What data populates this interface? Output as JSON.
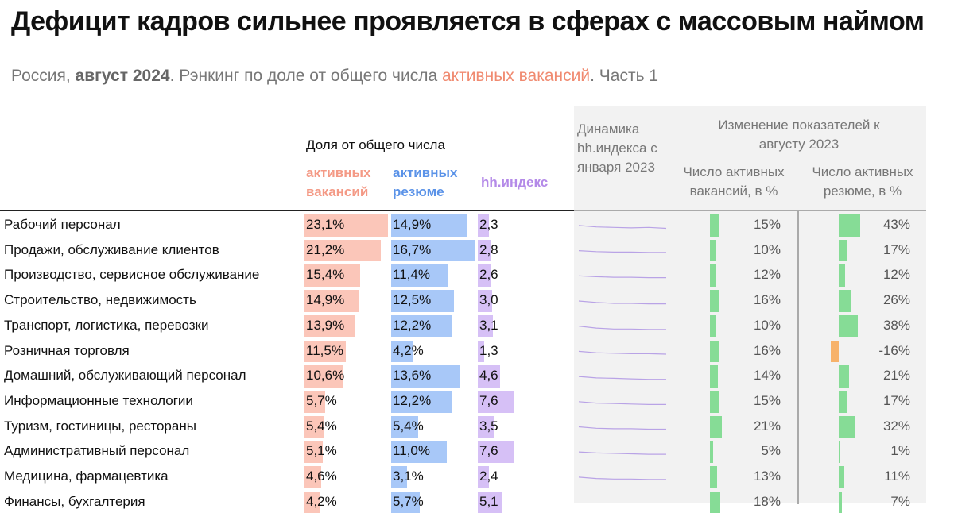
{
  "header": {
    "title": "Дефицит кадров сильнее проявляется в сферах с массовым наймом",
    "subtitle": [
      "Россия, ",
      "август 2024",
      ". Рэнкинг по доле от общего числа ",
      "активных вакансий",
      ". Часть 1"
    ]
  },
  "columns": {
    "share_group": "Доля от общего числа",
    "vacancies": "активных вакансий",
    "resumes": "активных резюме",
    "hh": "hh.индекс",
    "trend": "Динамика hh.индекса с января 2023",
    "change_group": "Изменение показателей к августу 2023",
    "vac_change": "Число активных вакансий, в %",
    "res_change": "Число активных резюме, в %"
  },
  "table": {
    "rows": [
      {
        "name": "Рабочий персонал",
        "vacancies": {
          "value": 23.1,
          "label": "23,1%"
        },
        "resumes": {
          "value": 14.9,
          "label": "14,9%"
        },
        "hh": {
          "value": 2.3,
          "label": "2,3"
        },
        "trend": [
          2.9,
          2.6,
          2.5,
          2.4,
          2.5,
          2.3
        ],
        "vac_change": {
          "value": 15,
          "label": "15%"
        },
        "res_change": {
          "value": 43,
          "label": "43%"
        }
      },
      {
        "name": "Продажи, обслуживание клиентов",
        "vacancies": {
          "value": 21.2,
          "label": "21,2%"
        },
        "resumes": {
          "value": 16.7,
          "label": "16,7%"
        },
        "hh": {
          "value": 2.8,
          "label": "2,8"
        },
        "trend": [
          3.2,
          3.0,
          2.9,
          2.9,
          2.8,
          2.8
        ],
        "vac_change": {
          "value": 10,
          "label": "10%"
        },
        "res_change": {
          "value": 17,
          "label": "17%"
        }
      },
      {
        "name": "Производство, сервисное обслуживание",
        "vacancies": {
          "value": 15.4,
          "label": "15,4%"
        },
        "resumes": {
          "value": 11.4,
          "label": "11,4%"
        },
        "hh": {
          "value": 2.6,
          "label": "2,6"
        },
        "trend": [
          3.0,
          2.8,
          2.7,
          2.7,
          2.6,
          2.6
        ],
        "vac_change": {
          "value": 12,
          "label": "12%"
        },
        "res_change": {
          "value": 12,
          "label": "12%"
        }
      },
      {
        "name": "Строительство, недвижимость",
        "vacancies": {
          "value": 14.9,
          "label": "14,9%"
        },
        "resumes": {
          "value": 12.5,
          "label": "12,5%"
        },
        "hh": {
          "value": 3.0,
          "label": "3,0"
        },
        "trend": [
          3.6,
          3.3,
          3.1,
          3.1,
          3.0,
          3.0
        ],
        "vac_change": {
          "value": 16,
          "label": "16%"
        },
        "res_change": {
          "value": 26,
          "label": "26%"
        }
      },
      {
        "name": "Транспорт, логистика, перевозки",
        "vacancies": {
          "value": 13.9,
          "label": "13,9%"
        },
        "resumes": {
          "value": 12.2,
          "label": "12,2%"
        },
        "hh": {
          "value": 3.1,
          "label": "3,1"
        },
        "trend": [
          3.8,
          3.4,
          3.2,
          3.2,
          3.1,
          3.1
        ],
        "vac_change": {
          "value": 10,
          "label": "10%"
        },
        "res_change": {
          "value": 38,
          "label": "38%"
        }
      },
      {
        "name": "Розничная торговля",
        "vacancies": {
          "value": 11.5,
          "label": "11,5%"
        },
        "resumes": {
          "value": 4.2,
          "label": "4,2%"
        },
        "hh": {
          "value": 1.3,
          "label": "1,3"
        },
        "trend": [
          1.9,
          1.6,
          1.5,
          1.4,
          1.4,
          1.3
        ],
        "vac_change": {
          "value": 16,
          "label": "16%"
        },
        "res_change": {
          "value": -16,
          "label": "-16%"
        }
      },
      {
        "name": "Домашний, обслуживающий персонал",
        "vacancies": {
          "value": 10.6,
          "label": "10,6%"
        },
        "resumes": {
          "value": 13.6,
          "label": "13,6%"
        },
        "hh": {
          "value": 4.6,
          "label": "4,6"
        },
        "trend": [
          5.2,
          4.9,
          4.8,
          4.7,
          4.6,
          4.6
        ],
        "vac_change": {
          "value": 14,
          "label": "14%"
        },
        "res_change": {
          "value": 21,
          "label": "21%"
        }
      },
      {
        "name": "Информационные технологии",
        "vacancies": {
          "value": 5.7,
          "label": "5,7%"
        },
        "resumes": {
          "value": 12.2,
          "label": "12,2%"
        },
        "hh": {
          "value": 7.6,
          "label": "7,6"
        },
        "trend": [
          8.2,
          7.9,
          7.8,
          7.7,
          7.6,
          7.6
        ],
        "vac_change": {
          "value": 15,
          "label": "15%"
        },
        "res_change": {
          "value": 17,
          "label": "17%"
        }
      },
      {
        "name": "Туризм, гостиницы, рестораны",
        "vacancies": {
          "value": 5.4,
          "label": "5,4%"
        },
        "resumes": {
          "value": 5.4,
          "label": "5,4%"
        },
        "hh": {
          "value": 3.5,
          "label": "3,5"
        },
        "trend": [
          4.0,
          3.7,
          3.6,
          3.6,
          3.5,
          3.5
        ],
        "vac_change": {
          "value": 21,
          "label": "21%"
        },
        "res_change": {
          "value": 32,
          "label": "32%"
        }
      },
      {
        "name": "Административный персонал",
        "vacancies": {
          "value": 5.1,
          "label": "5,1%"
        },
        "resumes": {
          "value": 11.0,
          "label": "11,0%"
        },
        "hh": {
          "value": 7.6,
          "label": "7,6"
        },
        "trend": [
          8.1,
          7.9,
          7.8,
          7.7,
          7.6,
          7.6
        ],
        "vac_change": {
          "value": 5,
          "label": "5%"
        },
        "res_change": {
          "value": 1,
          "label": "1%"
        }
      },
      {
        "name": "Медицина, фармацевтика",
        "vacancies": {
          "value": 4.6,
          "label": "4,6%"
        },
        "resumes": {
          "value": 3.1,
          "label": "3,1%"
        },
        "hh": {
          "value": 2.4,
          "label": "2,4"
        },
        "trend": [
          2.9,
          2.6,
          2.5,
          2.5,
          2.4,
          2.4
        ],
        "vac_change": {
          "value": 13,
          "label": "13%"
        },
        "res_change": {
          "value": 11,
          "label": "11%"
        }
      },
      {
        "name": "Финансы, бухгалтерия",
        "vacancies": {
          "value": 4.2,
          "label": "4,2%"
        },
        "resumes": {
          "value": 5.7,
          "label": "5,7%"
        },
        "hh": {
          "value": 5.1,
          "label": "5,1"
        },
        "trend": [
          5.6,
          5.4,
          5.3,
          5.2,
          5.1,
          5.1
        ],
        "vac_change": {
          "value": 18,
          "label": "18%"
        },
        "res_change": {
          "value": 7,
          "label": "7%"
        }
      }
    ]
  }
}
